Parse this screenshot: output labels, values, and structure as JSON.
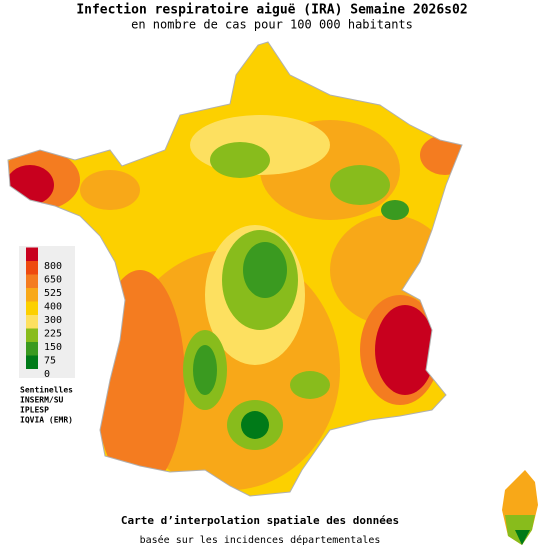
{
  "header": {
    "title": "Infection respiratoire aiguë (IRA) Semaine 2026s02",
    "subtitle": "en nombre de cas pour 100 000 habitants"
  },
  "legend": [
    {
      "value": 800,
      "color": "#c8001e"
    },
    {
      "value": 650,
      "color": "#ee4a10"
    },
    {
      "value": 525,
      "color": "#f47c20"
    },
    {
      "value": 400,
      "color": "#f8a818"
    },
    {
      "value": 300,
      "color": "#fcd000"
    },
    {
      "value": 225,
      "color": "#fde060"
    },
    {
      "value": 150,
      "color": "#88bc1c"
    },
    {
      "value": 75,
      "color": "#3a9a20"
    },
    {
      "value": 0,
      "color": "#007a18"
    }
  ],
  "sources": [
    "Sentinelles",
    "INSERM/SU",
    "IPLESP",
    "IQVIA (EMR)"
  ],
  "footer": {
    "caption": "Carte d’interpolation spatiale des données",
    "note": "basée sur les incidences départementales"
  }
}
